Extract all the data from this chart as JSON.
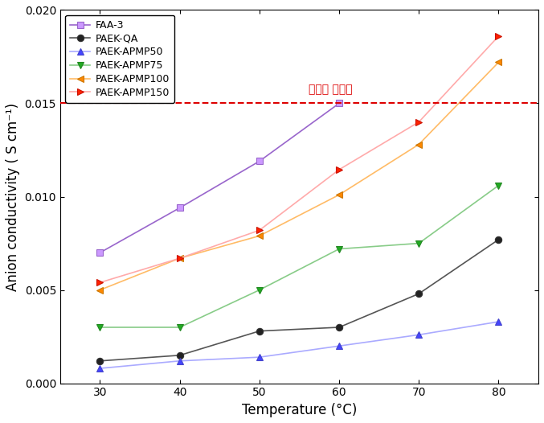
{
  "temperature": [
    30,
    40,
    50,
    60,
    70,
    80
  ],
  "series": [
    {
      "name": "FAA-3",
      "values": [
        0.007,
        0.0094,
        0.0119,
        0.015,
        null,
        null
      ],
      "color": "#9966cc",
      "marker": "s",
      "markersize": 6,
      "linewidth": 1.2,
      "markerfacecolor": "#cc99ff",
      "markeredgecolor": "#9966cc"
    },
    {
      "name": "PAEK-QA",
      "values": [
        0.0012,
        0.0015,
        0.0028,
        0.003,
        0.0048,
        0.0077
      ],
      "color": "#555555",
      "marker": "o",
      "markersize": 6,
      "linewidth": 1.2,
      "markerfacecolor": "#222222",
      "markeredgecolor": "#333333"
    },
    {
      "name": "PAEK-APMP50",
      "values": [
        0.0008,
        0.0012,
        0.0014,
        0.002,
        0.0026,
        0.0033
      ],
      "color": "#aaaaff",
      "marker": "^",
      "markersize": 6,
      "linewidth": 1.2,
      "markerfacecolor": "#4444ff",
      "markeredgecolor": "#4444cc"
    },
    {
      "name": "PAEK-APMP75",
      "values": [
        0.003,
        0.003,
        0.005,
        0.0072,
        0.0075,
        0.0106
      ],
      "color": "#88cc88",
      "marker": "v",
      "markersize": 6,
      "linewidth": 1.2,
      "markerfacecolor": "#22aa22",
      "markeredgecolor": "#228822"
    },
    {
      "name": "PAEK-APMP100",
      "values": [
        0.005,
        0.0067,
        0.0079,
        0.0101,
        0.0128,
        0.0172
      ],
      "color": "#ffbb66",
      "marker": "<",
      "markersize": 6,
      "linewidth": 1.2,
      "markerfacecolor": "#ff8800",
      "markeredgecolor": "#cc7700"
    },
    {
      "name": "PAEK-APMP150",
      "values": [
        0.0054,
        0.0067,
        0.0082,
        0.01145,
        0.014,
        0.0186
      ],
      "color": "#ffaaaa",
      "marker": ">",
      "markersize": 6,
      "linewidth": 1.2,
      "markerfacecolor": "#ff2200",
      "markeredgecolor": "#cc1100"
    }
  ],
  "dashed_line_y": 0.015,
  "dashed_line_label": "정량적 목표치",
  "dashed_line_color": "#dd0000",
  "dashed_line_x": 0.52,
  "xlabel": "Temperature (°C)",
  "ylabel": "Anion conductivity ( S cm⁻¹)",
  "xlim": [
    25,
    85
  ],
  "ylim": [
    0.0,
    0.02
  ],
  "yticks": [
    0.0,
    0.005,
    0.01,
    0.015,
    0.02
  ],
  "xticks": [
    30,
    40,
    50,
    60,
    70,
    80
  ],
  "legend_fontsize": 9,
  "axis_fontsize": 12,
  "tick_fontsize": 10,
  "figure_facecolor": "#ffffff",
  "figwidth": 6.77,
  "figheight": 5.26,
  "dpi": 100
}
